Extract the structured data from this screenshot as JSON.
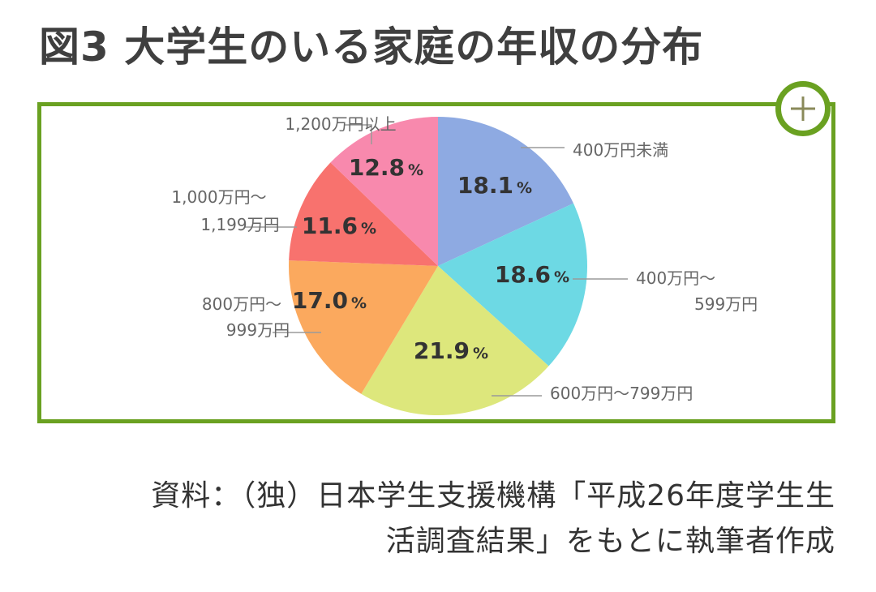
{
  "title": "図3 大学生のいる家庭の年収の分布",
  "expand_icon": "plus-icon",
  "colors": {
    "frame": "#6aa121",
    "leader": "#9a9a9a",
    "label": "#666666",
    "value": "#333333"
  },
  "chart_data": {
    "type": "pie",
    "start": "12 o'clock",
    "direction": "clockwise",
    "slices": [
      {
        "label_lines": [
          "400万円未満"
        ],
        "value": 18.1,
        "value_text": "18.1",
        "color": "#8eaae2"
      },
      {
        "label_lines": [
          "400万円～",
          "599万円"
        ],
        "value": 18.6,
        "value_text": "18.6",
        "color": "#6dd9e4"
      },
      {
        "label_lines": [
          "600万円～799万円"
        ],
        "value": 21.9,
        "value_text": "21.9",
        "color": "#dde77c"
      },
      {
        "label_lines": [
          "800万円～",
          "999万円"
        ],
        "value": 17.0,
        "value_text": "17.0",
        "color": "#fba95e"
      },
      {
        "label_lines": [
          "1,000万円～",
          "1,199万円"
        ],
        "value": 11.6,
        "value_text": "11.6",
        "color": "#f8726e"
      },
      {
        "label_lines": [
          "1,200万円以上"
        ],
        "value": 12.8,
        "value_text": "12.8",
        "color": "#f889ad"
      }
    ],
    "unit": "%"
  },
  "caption": {
    "line1": "資料：（独）日本学生支援機構「平成26年度学生生",
    "line2": "活調査結果」をもとに執筆者作成"
  }
}
